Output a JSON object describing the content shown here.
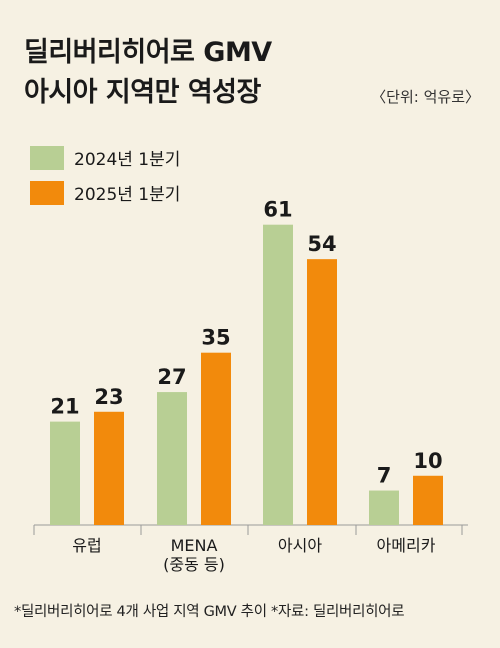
{
  "header": {
    "title_line1": "딜리버리히어로 GMV",
    "title_line2": "아시아 지역만 역성장",
    "unit": "〈단위: 억유로〉"
  },
  "legend": [
    {
      "label": "2024년 1분기",
      "color": "#b8cf94"
    },
    {
      "label": "2025년 1분기",
      "color": "#f28a0c"
    }
  ],
  "chart_data": {
    "type": "bar",
    "categories": [
      "유럽",
      "MENA\n(중동 등)",
      "아시아",
      "아메리카"
    ],
    "series": [
      {
        "name": "2024년 1분기",
        "values": [
          21,
          27,
          61,
          7
        ]
      },
      {
        "name": "2025년 1분기",
        "values": [
          23,
          35,
          54,
          10
        ]
      }
    ],
    "ylim": [
      0,
      65
    ],
    "grid": false,
    "legend_position": "top-left"
  },
  "footnote": "*딜리버리히어로 4개 사업 지역 GMV 추이 *자료: 딜리버리히어로"
}
